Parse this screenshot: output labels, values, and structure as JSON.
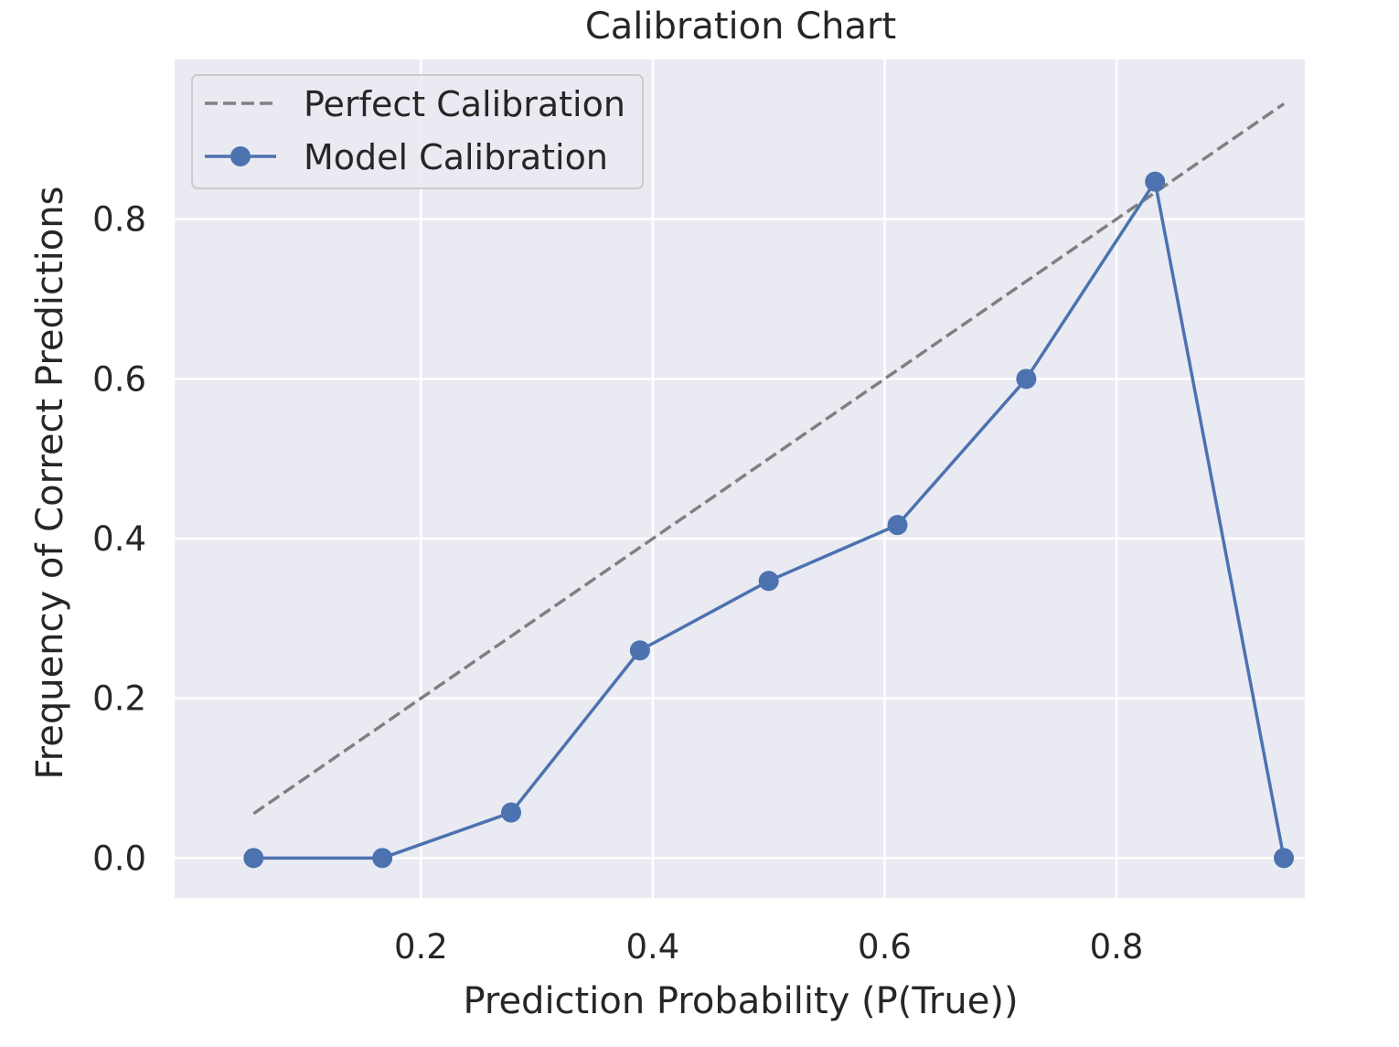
{
  "chart_data": {
    "type": "line",
    "title": "Calibration Chart",
    "xlabel": "Prediction Probability (P(True))",
    "ylabel": "Frequency of Correct Predictions",
    "xlim": [
      -0.0125,
      0.9625
    ],
    "ylim": [
      -0.05,
      1.0
    ],
    "xticks": [
      0.2,
      0.4,
      0.6,
      0.8
    ],
    "xtick_labels": [
      "0.2",
      "0.4",
      "0.6",
      "0.8"
    ],
    "yticks": [
      0.0,
      0.2,
      0.4,
      0.6,
      0.8
    ],
    "ytick_labels": [
      "0.0",
      "0.2",
      "0.4",
      "0.6",
      "0.8"
    ],
    "grid": true,
    "legend_position": "top-left",
    "series": [
      {
        "name": "Perfect Calibration",
        "style": "dashed",
        "color": "#808080",
        "markers": false,
        "x": [
          0.0556,
          0.9444
        ],
        "y": [
          0.0556,
          0.9444
        ]
      },
      {
        "name": "Model Calibration",
        "style": "solid",
        "color": "#4c72b0",
        "markers": true,
        "x": [
          0.0556,
          0.1667,
          0.2778,
          0.3889,
          0.5,
          0.6111,
          0.7222,
          0.8333,
          0.9444
        ],
        "y": [
          0.0,
          0.0,
          0.057,
          0.26,
          0.347,
          0.417,
          0.6,
          0.847,
          0.0
        ]
      }
    ]
  }
}
